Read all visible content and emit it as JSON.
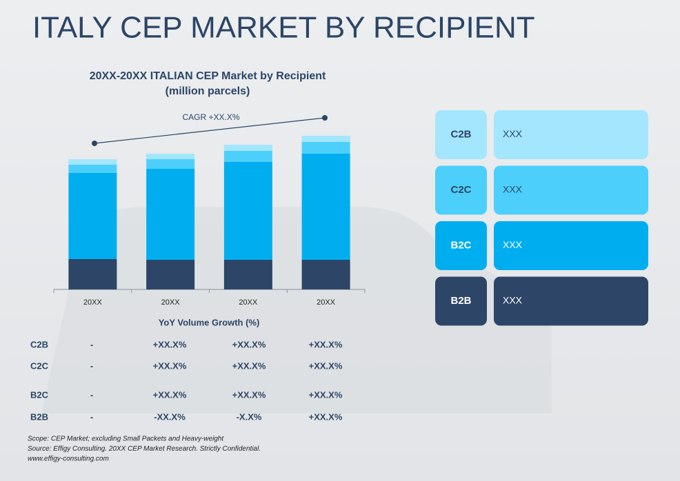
{
  "page_title": "ITALY CEP MARKET BY RECIPIENT",
  "chart_data": {
    "type": "stacked_bar",
    "title": "20XX-20XX ITALIAN CEP Market by Recipient",
    "subtitle": "(million parcels)",
    "annotation": "CAGR +XX.X%",
    "categories": [
      "20XX",
      "20XX",
      "20XX",
      "20XX"
    ],
    "series": [
      {
        "name": "B2B",
        "color": "#2d4566",
        "values": [
          44,
          43,
          43,
          43
        ]
      },
      {
        "name": "B2C",
        "color": "#00aeef",
        "values": [
          125,
          132,
          142,
          154
        ]
      },
      {
        "name": "C2C",
        "color": "#4cd0fb",
        "values": [
          12,
          14,
          16,
          17
        ]
      },
      {
        "name": "C2B",
        "color": "#a3e6fd",
        "values": [
          8,
          8,
          9,
          9
        ]
      }
    ],
    "ylim": [
      0,
      230
    ]
  },
  "legend_values": [
    "XXX",
    "XXX",
    "XXX",
    "XXX"
  ],
  "growth_table": {
    "title": "YoY Volume Growth (%)",
    "rows": [
      {
        "label": "C2B",
        "values": [
          "-",
          "+XX.X%",
          "+XX.X%",
          "+XX.X%"
        ]
      },
      {
        "label": "C2C",
        "values": [
          "-",
          "+XX.X%",
          "+XX.X%",
          "+XX.X%"
        ]
      },
      {
        "label": "B2C",
        "values": [
          "-",
          "+XX.X%",
          "+XX.X%",
          "+XX.X%"
        ]
      },
      {
        "label": "B2B",
        "values": [
          "-",
          "-XX.X%",
          "-X.X%",
          "+XX.X%"
        ]
      }
    ]
  },
  "footnotes": [
    "Scope: CEP Market; excluding Small Packets and Heavy-weight",
    "Source: Effigy Consulting. 20XX CEP Market Research. Strictly Confidential.",
    "www.effigy-consulting.com"
  ]
}
